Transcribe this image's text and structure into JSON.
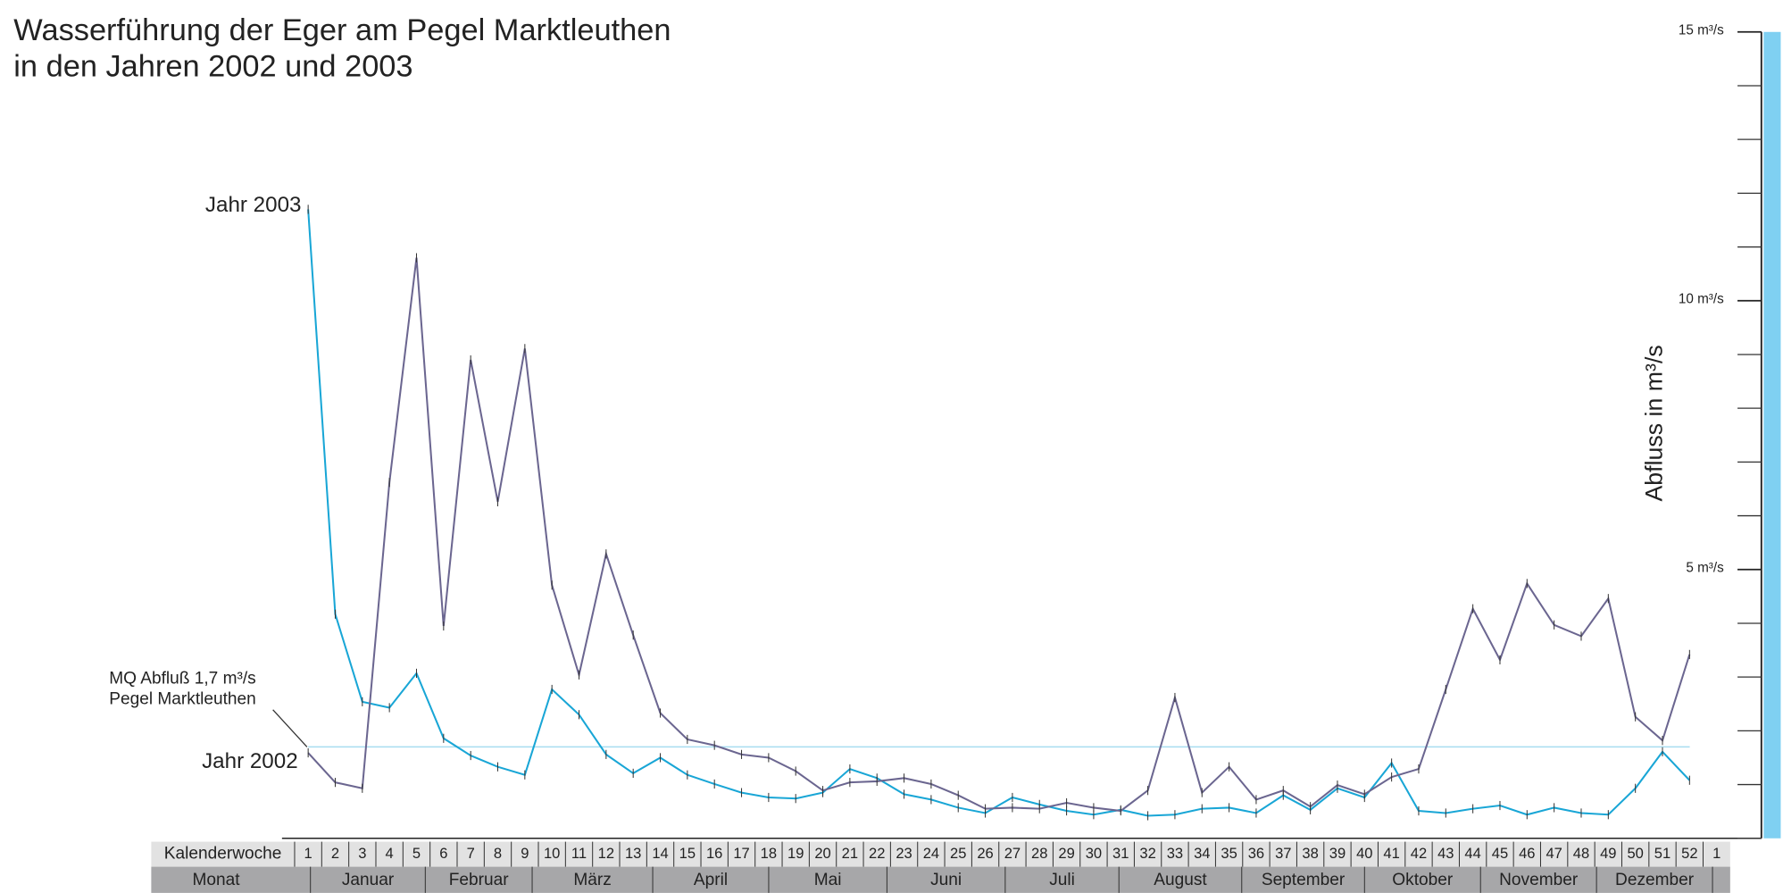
{
  "chart_data": {
    "type": "line",
    "title": "Wasserführung der Eger am Pegel Marktleuthen",
    "subtitle": "in den Jahren 2002 und 2003",
    "y_axis_label": "Abfluss in m³/s",
    "row_labels": [
      "Kalenderwoche",
      "Monat"
    ],
    "categories": [
      1,
      2,
      3,
      4,
      5,
      6,
      7,
      8,
      9,
      10,
      11,
      12,
      13,
      14,
      15,
      16,
      17,
      18,
      19,
      20,
      21,
      22,
      23,
      24,
      25,
      26,
      27,
      28,
      29,
      30,
      31,
      32,
      33,
      34,
      35,
      36,
      37,
      38,
      39,
      40,
      41,
      42,
      43,
      44,
      45,
      46,
      47,
      48,
      49,
      50,
      51,
      52,
      1
    ],
    "months": [
      "Januar",
      "Februar",
      "März",
      "April",
      "Mai",
      "Juni",
      "Juli",
      "August",
      "September",
      "Oktober",
      "November",
      "Dezember"
    ],
    "series": [
      {
        "name": "Jahr 2003",
        "color": "#19a6d6",
        "values": [
          11.7,
          4.17,
          2.54,
          2.43,
          3.07,
          1.86,
          1.54,
          1.33,
          1.18,
          2.77,
          2.3,
          1.56,
          1.21,
          1.5,
          1.18,
          1.01,
          0.85,
          0.76,
          0.74,
          0.85,
          1.29,
          1.12,
          0.82,
          0.72,
          0.57,
          0.47,
          0.76,
          0.63,
          0.51,
          0.44,
          0.53,
          0.42,
          0.44,
          0.55,
          0.57,
          0.47,
          0.8,
          0.53,
          0.93,
          0.76,
          1.4,
          0.51,
          0.47,
          0.55,
          0.61,
          0.44,
          0.57,
          0.47,
          0.44,
          0.93,
          1.61,
          1.08,
          null
        ]
      },
      {
        "name": "Jahr 2002",
        "color": "#6b6690",
        "values": [
          1.59,
          1.04,
          0.93,
          6.62,
          10.8,
          3.95,
          8.9,
          6.26,
          9.11,
          4.71,
          3.04,
          5.29,
          3.78,
          2.33,
          1.84,
          1.73,
          1.56,
          1.5,
          1.25,
          0.89,
          1.04,
          1.06,
          1.12,
          1.01,
          0.8,
          0.55,
          0.57,
          0.55,
          0.66,
          0.57,
          0.51,
          0.89,
          2.62,
          0.85,
          1.33,
          0.72,
          0.89,
          0.59,
          0.99,
          0.82,
          1.14,
          1.29,
          2.77,
          4.27,
          3.32,
          4.74,
          3.97,
          3.76,
          4.46,
          2.26,
          1.82,
          3.42,
          null
        ]
      }
    ],
    "reference_line": {
      "value": 1.7,
      "color": "#a8ddf0",
      "label": [
        "MQ Abfluß 1,7 m³/s",
        "Pegel Marktleuthen"
      ]
    },
    "ylim": [
      0,
      15
    ],
    "yticks": [
      {
        "value": 5,
        "label": "5 m³/s"
      },
      {
        "value": 10,
        "label": "10 m³/s"
      },
      {
        "value": 15,
        "label": "15 m³/s"
      }
    ],
    "yminorticks": [
      0,
      1,
      2,
      3,
      4,
      5,
      6,
      7,
      8,
      9,
      10,
      11,
      12,
      13,
      14,
      15
    ],
    "axis_color": "#7fd0f2"
  }
}
